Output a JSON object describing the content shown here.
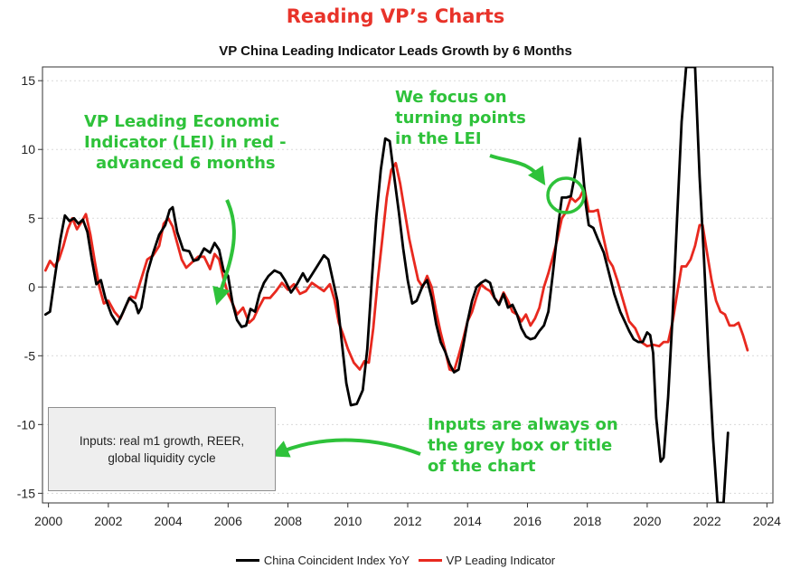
{
  "header": {
    "title": "Reading VP’s Charts"
  },
  "chart_data": {
    "type": "line",
    "title": "VP China Leading Indicator Leads Growth by 6 Months",
    "xlabel": "",
    "ylabel": "",
    "xlim": [
      1999.8,
      2024.2
    ],
    "ylim": [
      -15.7,
      16
    ],
    "x_ticks": [
      "2000",
      "2002",
      "2004",
      "2006",
      "2008",
      "2010",
      "2012",
      "2014",
      "2016",
      "2018",
      "2020",
      "2022",
      "2024"
    ],
    "y_ticks": [
      "15",
      "10",
      "5",
      "0",
      "-5",
      "-10",
      "-15"
    ],
    "zero_line": "dashed",
    "grid": "horizontal dotted",
    "legend_position": "bottom",
    "series": [
      {
        "name": "China Coincident Index YoY",
        "color": "#000000",
        "points": [
          [
            1999.9,
            -2.0
          ],
          [
            2000.05,
            -1.8
          ],
          [
            2000.2,
            0.5
          ],
          [
            2000.4,
            3.5
          ],
          [
            2000.55,
            5.2
          ],
          [
            2000.7,
            4.8
          ],
          [
            2000.85,
            5.0
          ],
          [
            2001.0,
            4.6
          ],
          [
            2001.15,
            4.9
          ],
          [
            2001.3,
            4.0
          ],
          [
            2001.45,
            2.0
          ],
          [
            2001.6,
            0.2
          ],
          [
            2001.75,
            0.5
          ],
          [
            2001.9,
            -0.8
          ],
          [
            2002.1,
            -2.0
          ],
          [
            2002.3,
            -2.7
          ],
          [
            2002.5,
            -1.8
          ],
          [
            2002.7,
            -0.8
          ],
          [
            2002.9,
            -1.2
          ],
          [
            2003.0,
            -1.9
          ],
          [
            2003.1,
            -1.5
          ],
          [
            2003.3,
            1.0
          ],
          [
            2003.5,
            2.5
          ],
          [
            2003.7,
            3.8
          ],
          [
            2003.9,
            4.5
          ],
          [
            2004.05,
            5.6
          ],
          [
            2004.15,
            5.8
          ],
          [
            2004.3,
            4.0
          ],
          [
            2004.5,
            2.7
          ],
          [
            2004.7,
            2.6
          ],
          [
            2004.85,
            1.9
          ],
          [
            2005.0,
            2.0
          ],
          [
            2005.2,
            2.8
          ],
          [
            2005.4,
            2.5
          ],
          [
            2005.55,
            3.2
          ],
          [
            2005.7,
            2.7
          ],
          [
            2005.85,
            1.2
          ],
          [
            2006.0,
            0.8
          ],
          [
            2006.15,
            -1.2
          ],
          [
            2006.3,
            -2.4
          ],
          [
            2006.45,
            -2.9
          ],
          [
            2006.6,
            -2.8
          ],
          [
            2006.75,
            -1.6
          ],
          [
            2006.9,
            -1.8
          ],
          [
            2007.05,
            -0.5
          ],
          [
            2007.2,
            0.3
          ],
          [
            2007.35,
            0.8
          ],
          [
            2007.55,
            1.2
          ],
          [
            2007.75,
            1.0
          ],
          [
            2007.9,
            0.5
          ],
          [
            2008.1,
            -0.4
          ],
          [
            2008.3,
            0.2
          ],
          [
            2008.5,
            1.0
          ],
          [
            2008.65,
            0.4
          ],
          [
            2008.8,
            0.9
          ],
          [
            2009.0,
            1.6
          ],
          [
            2009.2,
            2.3
          ],
          [
            2009.35,
            2.0
          ],
          [
            2009.5,
            0.5
          ],
          [
            2009.65,
            -1.0
          ],
          [
            2009.8,
            -4.0
          ],
          [
            2009.95,
            -7.0
          ],
          [
            2010.1,
            -8.6
          ],
          [
            2010.3,
            -8.5
          ],
          [
            2010.5,
            -7.5
          ],
          [
            2010.65,
            -4.5
          ],
          [
            2010.8,
            0.5
          ],
          [
            2010.95,
            5.0
          ],
          [
            2011.1,
            8.5
          ],
          [
            2011.25,
            10.8
          ],
          [
            2011.4,
            10.6
          ],
          [
            2011.55,
            8.0
          ],
          [
            2011.7,
            5.5
          ],
          [
            2011.85,
            2.8
          ],
          [
            2012.0,
            0.5
          ],
          [
            2012.15,
            -1.2
          ],
          [
            2012.3,
            -1.0
          ],
          [
            2012.5,
            0.1
          ],
          [
            2012.65,
            0.5
          ],
          [
            2012.8,
            -0.8
          ],
          [
            2012.95,
            -2.7
          ],
          [
            2013.1,
            -4.0
          ],
          [
            2013.25,
            -4.7
          ],
          [
            2013.4,
            -5.6
          ],
          [
            2013.55,
            -6.2
          ],
          [
            2013.7,
            -6.0
          ],
          [
            2013.85,
            -4.3
          ],
          [
            2014.0,
            -2.5
          ],
          [
            2014.15,
            -1.0
          ],
          [
            2014.3,
            0.0
          ],
          [
            2014.45,
            0.3
          ],
          [
            2014.6,
            0.5
          ],
          [
            2014.75,
            0.3
          ],
          [
            2014.9,
            -0.8
          ],
          [
            2015.05,
            -1.3
          ],
          [
            2015.2,
            -0.5
          ],
          [
            2015.35,
            -1.5
          ],
          [
            2015.5,
            -1.3
          ],
          [
            2015.65,
            -2.0
          ],
          [
            2015.8,
            -3.0
          ],
          [
            2015.95,
            -3.6
          ],
          [
            2016.1,
            -3.8
          ],
          [
            2016.25,
            -3.7
          ],
          [
            2016.4,
            -3.2
          ],
          [
            2016.55,
            -2.8
          ],
          [
            2016.7,
            -1.8
          ],
          [
            2016.85,
            1.0
          ],
          [
            2017.0,
            4.0
          ],
          [
            2017.15,
            6.5
          ],
          [
            2017.3,
            6.5
          ],
          [
            2017.45,
            6.6
          ],
          [
            2017.6,
            8.3
          ],
          [
            2017.75,
            10.8
          ],
          [
            2017.85,
            8.5
          ],
          [
            2017.95,
            6.0
          ],
          [
            2018.05,
            4.5
          ],
          [
            2018.2,
            4.3
          ],
          [
            2018.35,
            3.5
          ],
          [
            2018.55,
            2.5
          ],
          [
            2018.75,
            0.8
          ],
          [
            2018.9,
            -0.5
          ],
          [
            2019.1,
            -1.8
          ],
          [
            2019.25,
            -2.5
          ],
          [
            2019.4,
            -3.2
          ],
          [
            2019.55,
            -3.8
          ],
          [
            2019.7,
            -4.0
          ],
          [
            2019.85,
            -4.0
          ],
          [
            2020.0,
            -3.3
          ],
          [
            2020.1,
            -3.5
          ],
          [
            2020.2,
            -4.8
          ],
          [
            2020.3,
            -9.5
          ],
          [
            2020.45,
            -12.7
          ],
          [
            2020.55,
            -12.4
          ],
          [
            2020.7,
            -8.0
          ],
          [
            2020.85,
            -2.0
          ],
          [
            2021.0,
            5.0
          ],
          [
            2021.15,
            12.0
          ],
          [
            2021.3,
            16.0
          ],
          [
            2021.45,
            16.0
          ],
          [
            2021.6,
            16.0
          ],
          [
            2021.75,
            8.0
          ],
          [
            2021.9,
            2.0
          ],
          [
            2022.05,
            -5.0
          ],
          [
            2022.2,
            -11.0
          ],
          [
            2022.35,
            -15.7
          ],
          [
            2022.55,
            -15.7
          ],
          [
            2022.7,
            -10.6
          ]
        ]
      },
      {
        "name": "VP Leading Indicator",
        "color": "#e8291f",
        "points": [
          [
            1999.9,
            1.2
          ],
          [
            2000.05,
            1.9
          ],
          [
            2000.2,
            1.5
          ],
          [
            2000.35,
            2.0
          ],
          [
            2000.5,
            3.0
          ],
          [
            2000.65,
            4.2
          ],
          [
            2000.8,
            5.0
          ],
          [
            2000.95,
            4.2
          ],
          [
            2001.1,
            4.7
          ],
          [
            2001.25,
            5.3
          ],
          [
            2001.4,
            3.8
          ],
          [
            2001.55,
            1.8
          ],
          [
            2001.7,
            0.0
          ],
          [
            2001.85,
            -1.2
          ],
          [
            2002.0,
            -1.0
          ],
          [
            2002.2,
            -1.8
          ],
          [
            2002.4,
            -2.3
          ],
          [
            2002.6,
            -1.3
          ],
          [
            2002.75,
            -0.7
          ],
          [
            2002.9,
            -0.8
          ],
          [
            2003.1,
            0.6
          ],
          [
            2003.3,
            2.0
          ],
          [
            2003.5,
            2.3
          ],
          [
            2003.7,
            3.0
          ],
          [
            2003.85,
            4.6
          ],
          [
            2004.0,
            5.0
          ],
          [
            2004.15,
            4.4
          ],
          [
            2004.3,
            3.2
          ],
          [
            2004.45,
            2.0
          ],
          [
            2004.6,
            1.4
          ],
          [
            2004.8,
            1.8
          ],
          [
            2005.0,
            2.2
          ],
          [
            2005.2,
            2.2
          ],
          [
            2005.4,
            1.3
          ],
          [
            2005.55,
            2.4
          ],
          [
            2005.7,
            2.0
          ],
          [
            2005.85,
            0.6
          ],
          [
            2006.0,
            -0.5
          ],
          [
            2006.15,
            -1.2
          ],
          [
            2006.3,
            -2.0
          ],
          [
            2006.5,
            -1.5
          ],
          [
            2006.7,
            -2.6
          ],
          [
            2006.85,
            -2.3
          ],
          [
            2007.0,
            -1.6
          ],
          [
            2007.2,
            -0.8
          ],
          [
            2007.4,
            -0.8
          ],
          [
            2007.6,
            -0.3
          ],
          [
            2007.8,
            0.3
          ],
          [
            2008.0,
            -0.2
          ],
          [
            2008.2,
            0.2
          ],
          [
            2008.4,
            -0.5
          ],
          [
            2008.6,
            -0.3
          ],
          [
            2008.8,
            0.3
          ],
          [
            2009.0,
            0.0
          ],
          [
            2009.2,
            -0.3
          ],
          [
            2009.4,
            0.2
          ],
          [
            2009.55,
            -0.9
          ],
          [
            2009.7,
            -2.6
          ],
          [
            2009.85,
            -3.5
          ],
          [
            2010.0,
            -4.5
          ],
          [
            2010.2,
            -5.5
          ],
          [
            2010.4,
            -6.0
          ],
          [
            2010.55,
            -5.4
          ],
          [
            2010.7,
            -5.5
          ],
          [
            2010.85,
            -3.0
          ],
          [
            2011.0,
            0.5
          ],
          [
            2011.15,
            3.5
          ],
          [
            2011.3,
            6.5
          ],
          [
            2011.45,
            8.5
          ],
          [
            2011.6,
            9.0
          ],
          [
            2011.75,
            7.5
          ],
          [
            2011.9,
            5.5
          ],
          [
            2012.05,
            3.5
          ],
          [
            2012.2,
            2.0
          ],
          [
            2012.35,
            0.5
          ],
          [
            2012.5,
            0.0
          ],
          [
            2012.65,
            0.8
          ],
          [
            2012.8,
            0.0
          ],
          [
            2012.95,
            -1.8
          ],
          [
            2013.1,
            -3.3
          ],
          [
            2013.25,
            -4.6
          ],
          [
            2013.4,
            -6.0
          ],
          [
            2013.55,
            -6.1
          ],
          [
            2013.7,
            -5.0
          ],
          [
            2013.85,
            -3.8
          ],
          [
            2014.0,
            -2.5
          ],
          [
            2014.15,
            -1.8
          ],
          [
            2014.3,
            -0.7
          ],
          [
            2014.45,
            0.2
          ],
          [
            2014.6,
            -0.1
          ],
          [
            2014.75,
            -0.3
          ],
          [
            2014.9,
            -0.8
          ],
          [
            2015.05,
            -1.2
          ],
          [
            2015.2,
            -0.4
          ],
          [
            2015.35,
            -1.0
          ],
          [
            2015.5,
            -1.8
          ],
          [
            2015.65,
            -2.0
          ],
          [
            2015.8,
            -2.5
          ],
          [
            2015.95,
            -2.0
          ],
          [
            2016.1,
            -2.8
          ],
          [
            2016.25,
            -2.3
          ],
          [
            2016.4,
            -1.5
          ],
          [
            2016.55,
            0.0
          ],
          [
            2016.7,
            1.0
          ],
          [
            2016.85,
            2.2
          ],
          [
            2017.0,
            3.5
          ],
          [
            2017.15,
            5.0
          ],
          [
            2017.3,
            5.5
          ],
          [
            2017.45,
            6.5
          ],
          [
            2017.6,
            6.2
          ],
          [
            2017.75,
            6.5
          ],
          [
            2017.9,
            7.2
          ],
          [
            2018.05,
            5.5
          ],
          [
            2018.2,
            5.5
          ],
          [
            2018.35,
            5.6
          ],
          [
            2018.5,
            4.0
          ],
          [
            2018.7,
            2.0
          ],
          [
            2018.85,
            1.5
          ],
          [
            2019.0,
            0.5
          ],
          [
            2019.2,
            -1.0
          ],
          [
            2019.4,
            -2.5
          ],
          [
            2019.6,
            -3.0
          ],
          [
            2019.8,
            -4.0
          ],
          [
            2020.0,
            -4.3
          ],
          [
            2020.2,
            -4.2
          ],
          [
            2020.4,
            -4.3
          ],
          [
            2020.55,
            -4.0
          ],
          [
            2020.7,
            -4.0
          ],
          [
            2020.85,
            -2.5
          ],
          [
            2021.0,
            -0.5
          ],
          [
            2021.15,
            1.5
          ],
          [
            2021.3,
            1.5
          ],
          [
            2021.45,
            2.0
          ],
          [
            2021.6,
            3.0
          ],
          [
            2021.75,
            4.5
          ],
          [
            2021.85,
            4.5
          ],
          [
            2022.0,
            2.5
          ],
          [
            2022.15,
            0.5
          ],
          [
            2022.3,
            -1.0
          ],
          [
            2022.45,
            -1.8
          ],
          [
            2022.6,
            -2.0
          ],
          [
            2022.75,
            -2.8
          ],
          [
            2022.9,
            -2.8
          ],
          [
            2023.05,
            -2.6
          ],
          [
            2023.2,
            -3.5
          ],
          [
            2023.35,
            -4.6
          ]
        ]
      }
    ]
  },
  "annotations": {
    "lei_note": [
      "VP Leading Economic",
      "Indicator (LEI) in red -",
      "advanced 6 months"
    ],
    "turning_note": [
      "We focus on",
      "turning points",
      "in the LEI"
    ],
    "inputs_note": [
      "Inputs are always on",
      "the grey box or title",
      "of the chart"
    ],
    "color": "#2ec23a"
  },
  "input_box": {
    "text": "Inputs: real m1 growth, REER,\nglobal liquidity cycle"
  }
}
